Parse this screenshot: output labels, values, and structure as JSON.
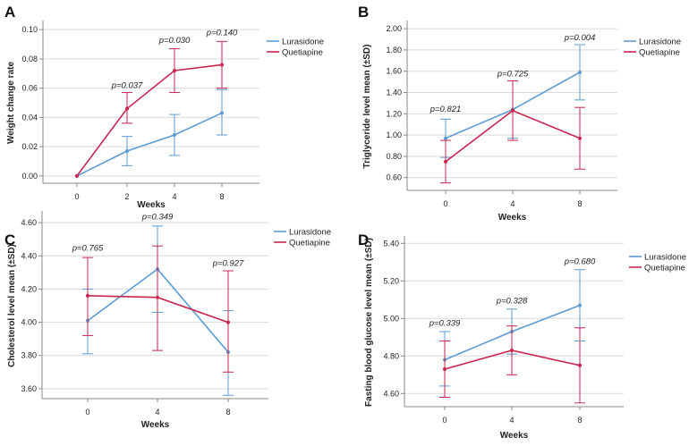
{
  "colors": {
    "lurasidone": "#5b9bd5",
    "quetiapine": "#c8264e",
    "grid": "#d9d9d9",
    "axis": "#888888"
  },
  "chart_data": [
    {
      "panel": "A",
      "type": "line",
      "title": "",
      "xlabel": "Weeks",
      "ylabel": "Weight change rate",
      "categories": [
        "0",
        "2",
        "4",
        "8"
      ],
      "ylim": [
        -0.005,
        0.105
      ],
      "yticks": [
        0.0,
        0.02,
        0.04,
        0.06,
        0.08,
        0.1
      ],
      "ytick_labels": [
        "0.00",
        "0.02",
        "0.04",
        "0.06",
        "0.08",
        "0.10"
      ],
      "legend": [
        "Lurasidone",
        "Quetiapine"
      ],
      "legend_position": "top-right",
      "series": [
        {
          "name": "Lurasidone",
          "values": [
            0.0,
            0.017,
            0.028,
            0.043
          ],
          "err_low": [
            0.0,
            0.007,
            0.014,
            0.028
          ],
          "err_high": [
            0.0,
            0.027,
            0.042,
            0.059
          ]
        },
        {
          "name": "Quetiapine",
          "values": [
            0.0,
            0.046,
            0.072,
            0.076
          ],
          "err_low": [
            0.0,
            0.036,
            0.057,
            0.06
          ],
          "err_high": [
            0.0,
            0.057,
            0.087,
            0.092
          ]
        }
      ],
      "annotations": [
        {
          "text": "p=0.037",
          "x": "2",
          "y": 0.06
        },
        {
          "text": "p=0.030",
          "x": "4",
          "y": 0.091
        },
        {
          "text": "p=0.140",
          "x": "8",
          "y": 0.096
        }
      ]
    },
    {
      "panel": "B",
      "type": "line",
      "title": "",
      "xlabel": "Weeks",
      "ylabel": "Triglyceride level mean (±SD)",
      "categories": [
        "0",
        "4",
        "8"
      ],
      "ylim": [
        0.48,
        2.06
      ],
      "yticks": [
        0.6,
        0.8,
        1.0,
        1.2,
        1.4,
        1.6,
        1.8,
        2.0
      ],
      "ytick_labels": [
        "0.60",
        "0.80",
        "1.00",
        "1.20",
        "1.40",
        "1.60",
        "1.80",
        "2.00"
      ],
      "legend": [
        "Lurasidone",
        "Quetiapine"
      ],
      "legend_position": "top-right",
      "series": [
        {
          "name": "Lurasidone",
          "values": [
            0.97,
            1.24,
            1.59
          ],
          "err_low": [
            0.79,
            0.97,
            1.33
          ],
          "err_high": [
            1.15,
            1.51,
            1.85
          ]
        },
        {
          "name": "Quetiapine",
          "values": [
            0.75,
            1.23,
            0.97
          ],
          "err_low": [
            0.55,
            0.95,
            0.68
          ],
          "err_high": [
            0.95,
            1.51,
            1.26
          ]
        }
      ],
      "annotations": [
        {
          "text": "p=0.821",
          "x": "0",
          "y": 1.22
        },
        {
          "text": "p=0.725",
          "x": "4",
          "y": 1.55
        },
        {
          "text": "p=0.004",
          "x": "8",
          "y": 1.89
        }
      ]
    },
    {
      "panel": "C",
      "type": "line",
      "title": "",
      "xlabel": "Weeks",
      "ylabel": "Cholesterol level mean (±SD)",
      "categories": [
        "0",
        "4",
        "8"
      ],
      "ylim": [
        3.54,
        4.66
      ],
      "yticks": [
        3.6,
        3.8,
        4.0,
        4.2,
        4.4,
        4.6
      ],
      "ytick_labels": [
        "3.60",
        "3.80",
        "4.00",
        "4.20",
        "4.40",
        "4.60"
      ],
      "legend": [
        "Lurasidone",
        "Quetiapine"
      ],
      "legend_position": "top-right",
      "series": [
        {
          "name": "Lurasidone",
          "values": [
            4.01,
            4.32,
            3.82
          ],
          "err_low": [
            3.81,
            4.06,
            3.56
          ],
          "err_high": [
            4.2,
            4.58,
            4.07
          ]
        },
        {
          "name": "Quetiapine",
          "values": [
            4.16,
            4.15,
            4.0
          ],
          "err_low": [
            3.92,
            3.83,
            3.7
          ],
          "err_high": [
            4.39,
            4.46,
            4.31
          ]
        }
      ],
      "annotations": [
        {
          "text": "p=0.765",
          "x": "0",
          "y": 4.43
        },
        {
          "text": "p=0.349",
          "x": "4",
          "y": 4.62
        },
        {
          "text": "p=0.927",
          "x": "8",
          "y": 4.34
        }
      ]
    },
    {
      "panel": "D",
      "type": "line",
      "title": "",
      "xlabel": "Weeks",
      "ylabel": "Fasting blood glucose level mean (±SD)",
      "categories": [
        "0",
        "4",
        "8"
      ],
      "ylim": [
        4.53,
        5.43
      ],
      "yticks": [
        4.6,
        4.8,
        5.0,
        5.2,
        5.4
      ],
      "ytick_labels": [
        "4.60",
        "4.80",
        "5.00",
        "5.20",
        "5.40"
      ],
      "legend": [
        "Lurasidone",
        "Quetiapine"
      ],
      "legend_position": "top-right",
      "series": [
        {
          "name": "Lurasidone",
          "values": [
            4.78,
            4.93,
            5.07
          ],
          "err_low": [
            4.64,
            4.81,
            4.88
          ],
          "err_high": [
            4.93,
            5.05,
            5.26
          ]
        },
        {
          "name": "Quetiapine",
          "values": [
            4.73,
            4.83,
            4.75
          ],
          "err_low": [
            4.58,
            4.7,
            4.55
          ],
          "err_high": [
            4.88,
            4.96,
            4.95
          ]
        }
      ],
      "annotations": [
        {
          "text": "p=0.339",
          "x": "0",
          "y": 4.96
        },
        {
          "text": "p=0.328",
          "x": "4",
          "y": 5.08
        },
        {
          "text": "p=0.680",
          "x": "8",
          "y": 5.29
        }
      ]
    }
  ]
}
